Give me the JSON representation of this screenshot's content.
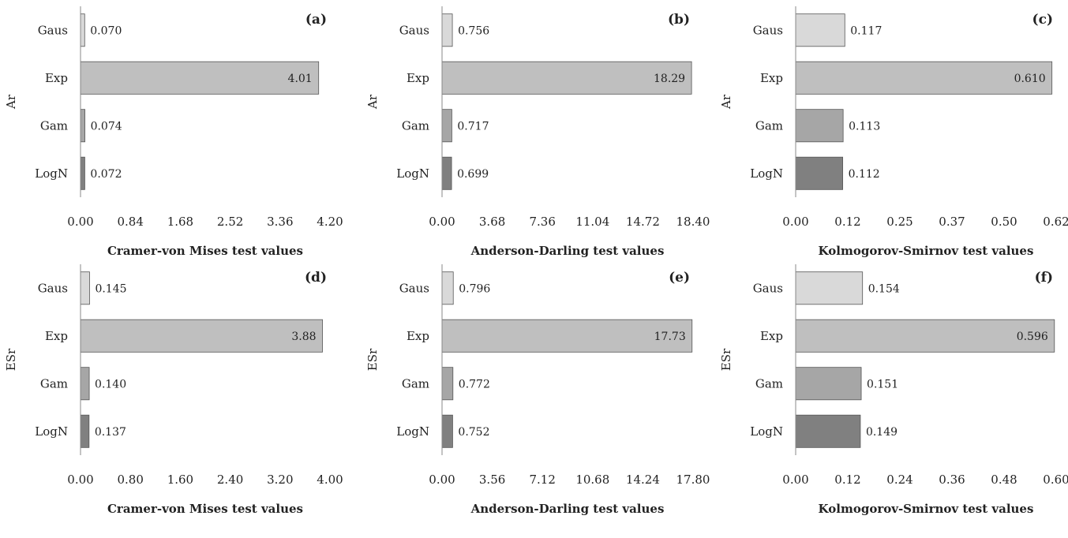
{
  "chart_data": [
    {
      "type": "bar",
      "panel_label": "(a)",
      "ylabel": "Ar",
      "xlabel": "Cramer-von Mises test values",
      "categories": [
        "Gaus",
        "Exp",
        "Gam",
        "LogN"
      ],
      "values": [
        0.07,
        4.01,
        0.074,
        0.072
      ],
      "value_labels": [
        "0.070",
        "4.01",
        "0.074",
        "0.072"
      ],
      "xticks": [
        "0.00",
        "0.84",
        "1.68",
        "2.52",
        "3.36",
        "4.20"
      ],
      "xlim": [
        0,
        4.2
      ]
    },
    {
      "type": "bar",
      "panel_label": "(b)",
      "ylabel": "Ar",
      "xlabel": "Anderson-Darling test values",
      "categories": [
        "Gaus",
        "Exp",
        "Gam",
        "LogN"
      ],
      "values": [
        0.756,
        18.29,
        0.717,
        0.699
      ],
      "value_labels": [
        "0.756",
        "18.29",
        "0.717",
        "0.699"
      ],
      "xticks": [
        "0.00",
        "3.68",
        "7.36",
        "11.04",
        "14.72",
        "18.40"
      ],
      "xlim": [
        0,
        18.4
      ]
    },
    {
      "type": "bar",
      "panel_label": "(c)",
      "ylabel": "Ar",
      "xlabel": "Kolmogorov-Smirnov test values",
      "categories": [
        "Gaus",
        "Exp",
        "Gam",
        "LogN"
      ],
      "values": [
        0.117,
        0.61,
        0.113,
        0.112
      ],
      "value_labels": [
        "0.117",
        "0.610",
        "0.113",
        "0.112"
      ],
      "xticks": [
        "0.00",
        "0.12",
        "0.25",
        "0.37",
        "0.50",
        "0.62"
      ],
      "xlim": [
        0,
        0.62
      ]
    },
    {
      "type": "bar",
      "panel_label": "(d)",
      "ylabel": "ESr",
      "xlabel": "Cramer-von Mises test values",
      "categories": [
        "Gaus",
        "Exp",
        "Gam",
        "LogN"
      ],
      "values": [
        0.145,
        3.88,
        0.14,
        0.137
      ],
      "value_labels": [
        "0.145",
        "3.88",
        "0.140",
        "0.137"
      ],
      "xticks": [
        "0.00",
        "0.80",
        "1.60",
        "2.40",
        "3.20",
        "4.00"
      ],
      "xlim": [
        0,
        4.0
      ]
    },
    {
      "type": "bar",
      "panel_label": "(e)",
      "ylabel": "ESr",
      "xlabel": "Anderson-Darling test values",
      "categories": [
        "Gaus",
        "Exp",
        "Gam",
        "LogN"
      ],
      "values": [
        0.796,
        17.73,
        0.772,
        0.752
      ],
      "value_labels": [
        "0.796",
        "17.73",
        "0.772",
        "0.752"
      ],
      "xticks": [
        "0.00",
        "3.56",
        "7.12",
        "10.68",
        "14.24",
        "17.80"
      ],
      "xlim": [
        0,
        17.8
      ]
    },
    {
      "type": "bar",
      "panel_label": "(f)",
      "ylabel": "ESr",
      "xlabel": "Kolmogorov-Smirnov test values",
      "categories": [
        "Gaus",
        "Exp",
        "Gam",
        "LogN"
      ],
      "values": [
        0.154,
        0.596,
        0.151,
        0.149
      ],
      "value_labels": [
        "0.154",
        "0.596",
        "0.151",
        "0.149"
      ],
      "xticks": [
        "0.00",
        "0.12",
        "0.24",
        "0.36",
        "0.48",
        "0.60"
      ],
      "xlim": [
        0,
        0.6
      ]
    }
  ],
  "colors": {
    "Gaus": "#d9d9d9",
    "Exp": "#bfbfbf",
    "Gam": "#a6a6a6",
    "LogN": "#808080",
    "bar_stroke": "#555555",
    "axis": "#888888"
  }
}
